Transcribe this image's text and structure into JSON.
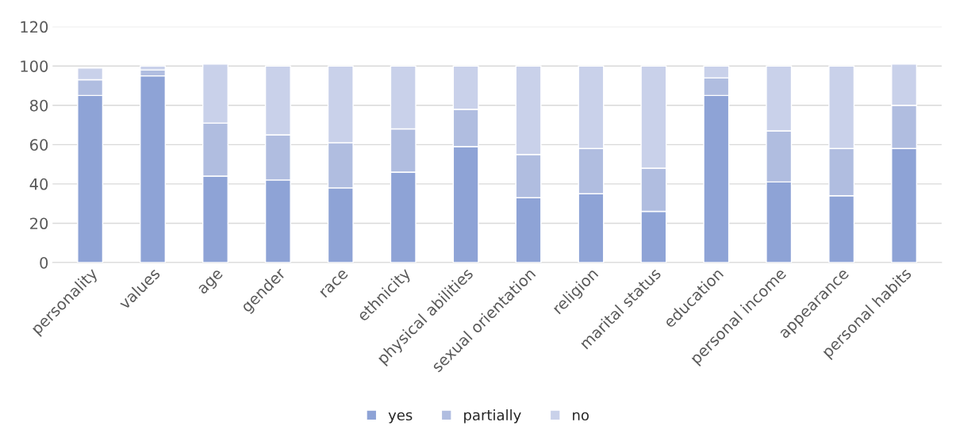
{
  "chart_data": {
    "type": "bar",
    "stacked": true,
    "categories": [
      "personality",
      "values",
      "age",
      "gender",
      "race",
      "ethnicity",
      "physical abilities",
      "sexual orientation",
      "religion",
      "marital status",
      "education",
      "personal income",
      "appearance",
      "personal habits"
    ],
    "series": [
      {
        "name": "yes",
        "color": "#8ea3d6",
        "values": [
          85,
          95,
          44,
          42,
          38,
          46,
          59,
          33,
          35,
          26,
          85,
          41,
          34,
          58
        ]
      },
      {
        "name": "partially",
        "color": "#b0bde0",
        "values": [
          8,
          3,
          27,
          23,
          23,
          22,
          19,
          22,
          23,
          22,
          9,
          26,
          24,
          22
        ]
      },
      {
        "name": "no",
        "color": "#c9d1ea",
        "values": [
          6,
          2,
          30,
          35,
          39,
          32,
          22,
          45,
          42,
          52,
          6,
          33,
          42,
          21
        ]
      }
    ],
    "ylim": [
      0,
      120
    ],
    "yticks": [
      0,
      20,
      40,
      60,
      80,
      100,
      120
    ],
    "grid": "y",
    "legend": "bottom"
  }
}
